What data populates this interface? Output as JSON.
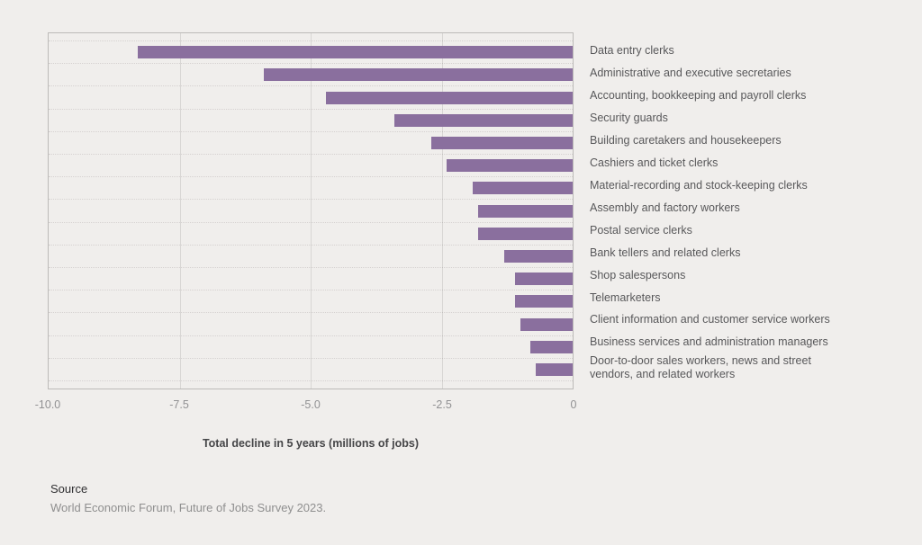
{
  "chart_data": {
    "type": "bar",
    "orientation": "horizontal",
    "title": "",
    "xlabel": "Total decline in 5 years (millions of jobs)",
    "ylabel": "",
    "xlim": [
      -10.0,
      0
    ],
    "x_ticks": [
      "-10.0",
      "-7.5",
      "-5.0",
      "-2.5",
      "0"
    ],
    "grid": true,
    "legend_position": "none",
    "bar_color": "#8a6f9e",
    "categories": [
      "Data entry clerks",
      "Administrative and executive secretaries",
      "Accounting, bookkeeping and payroll clerks",
      "Security guards",
      "Building caretakers and housekeepers",
      "Cashiers and ticket clerks",
      "Material-recording and stock-keeping clerks",
      "Assembly and factory workers",
      "Postal service clerks",
      "Bank tellers and related clerks",
      "Shop salespersons",
      "Telemarketers",
      "Client information and customer service workers",
      "Business services and administration managers",
      "Door-to-door sales workers, news and street\nvendors, and related workers"
    ],
    "values": [
      -8.3,
      -5.9,
      -4.7,
      -3.4,
      -2.7,
      -2.4,
      -1.9,
      -1.8,
      -1.8,
      -1.3,
      -1.1,
      -1.1,
      -1.0,
      -0.8,
      -0.7
    ]
  },
  "source": {
    "heading": "Source",
    "text": "World Economic Forum, Future of Jobs Survey 2023."
  },
  "colors": {
    "background": "#f0eeec",
    "bar": "#8a6f9e",
    "plot_border": "#bcbab8",
    "gridline": "#d8d6d4",
    "tick_text": "#919193",
    "category_text": "#58585a",
    "axis_title_text": "#454547",
    "source_text": "#8f8f8f"
  }
}
